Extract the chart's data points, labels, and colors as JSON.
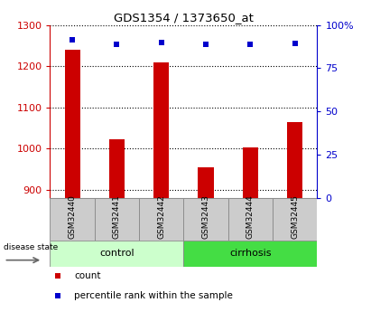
{
  "title": "GDS1354 / 1373650_at",
  "samples": [
    "GSM32440",
    "GSM32441",
    "GSM32442",
    "GSM32443",
    "GSM32444",
    "GSM32445"
  ],
  "counts": [
    1240,
    1022,
    1210,
    955,
    1002,
    1065
  ],
  "percentile_y": [
    1263,
    1252,
    1258,
    1252,
    1252,
    1255
  ],
  "y_min": 880,
  "y_max": 1300,
  "y_ticks": [
    900,
    1000,
    1100,
    1200,
    1300
  ],
  "right_y_ticks": [
    0,
    25,
    50,
    75,
    100
  ],
  "right_y_labels": [
    "0",
    "25",
    "50",
    "75",
    "100%"
  ],
  "bar_color": "#cc0000",
  "square_color": "#0000cc",
  "control_label": "control",
  "cirrhosis_label": "cirrhosis",
  "group_label": "disease state",
  "legend_count_label": "count",
  "legend_pct_label": "percentile rank within the sample",
  "bg_color": "#ffffff",
  "plot_bg_color": "#ffffff",
  "group_box_color_control": "#ccffcc",
  "group_box_color_cirrhosis": "#44dd44",
  "sample_box_color": "#cccccc",
  "left_axis_color": "#cc0000",
  "right_axis_color": "#0000cc",
  "bar_width": 0.35
}
